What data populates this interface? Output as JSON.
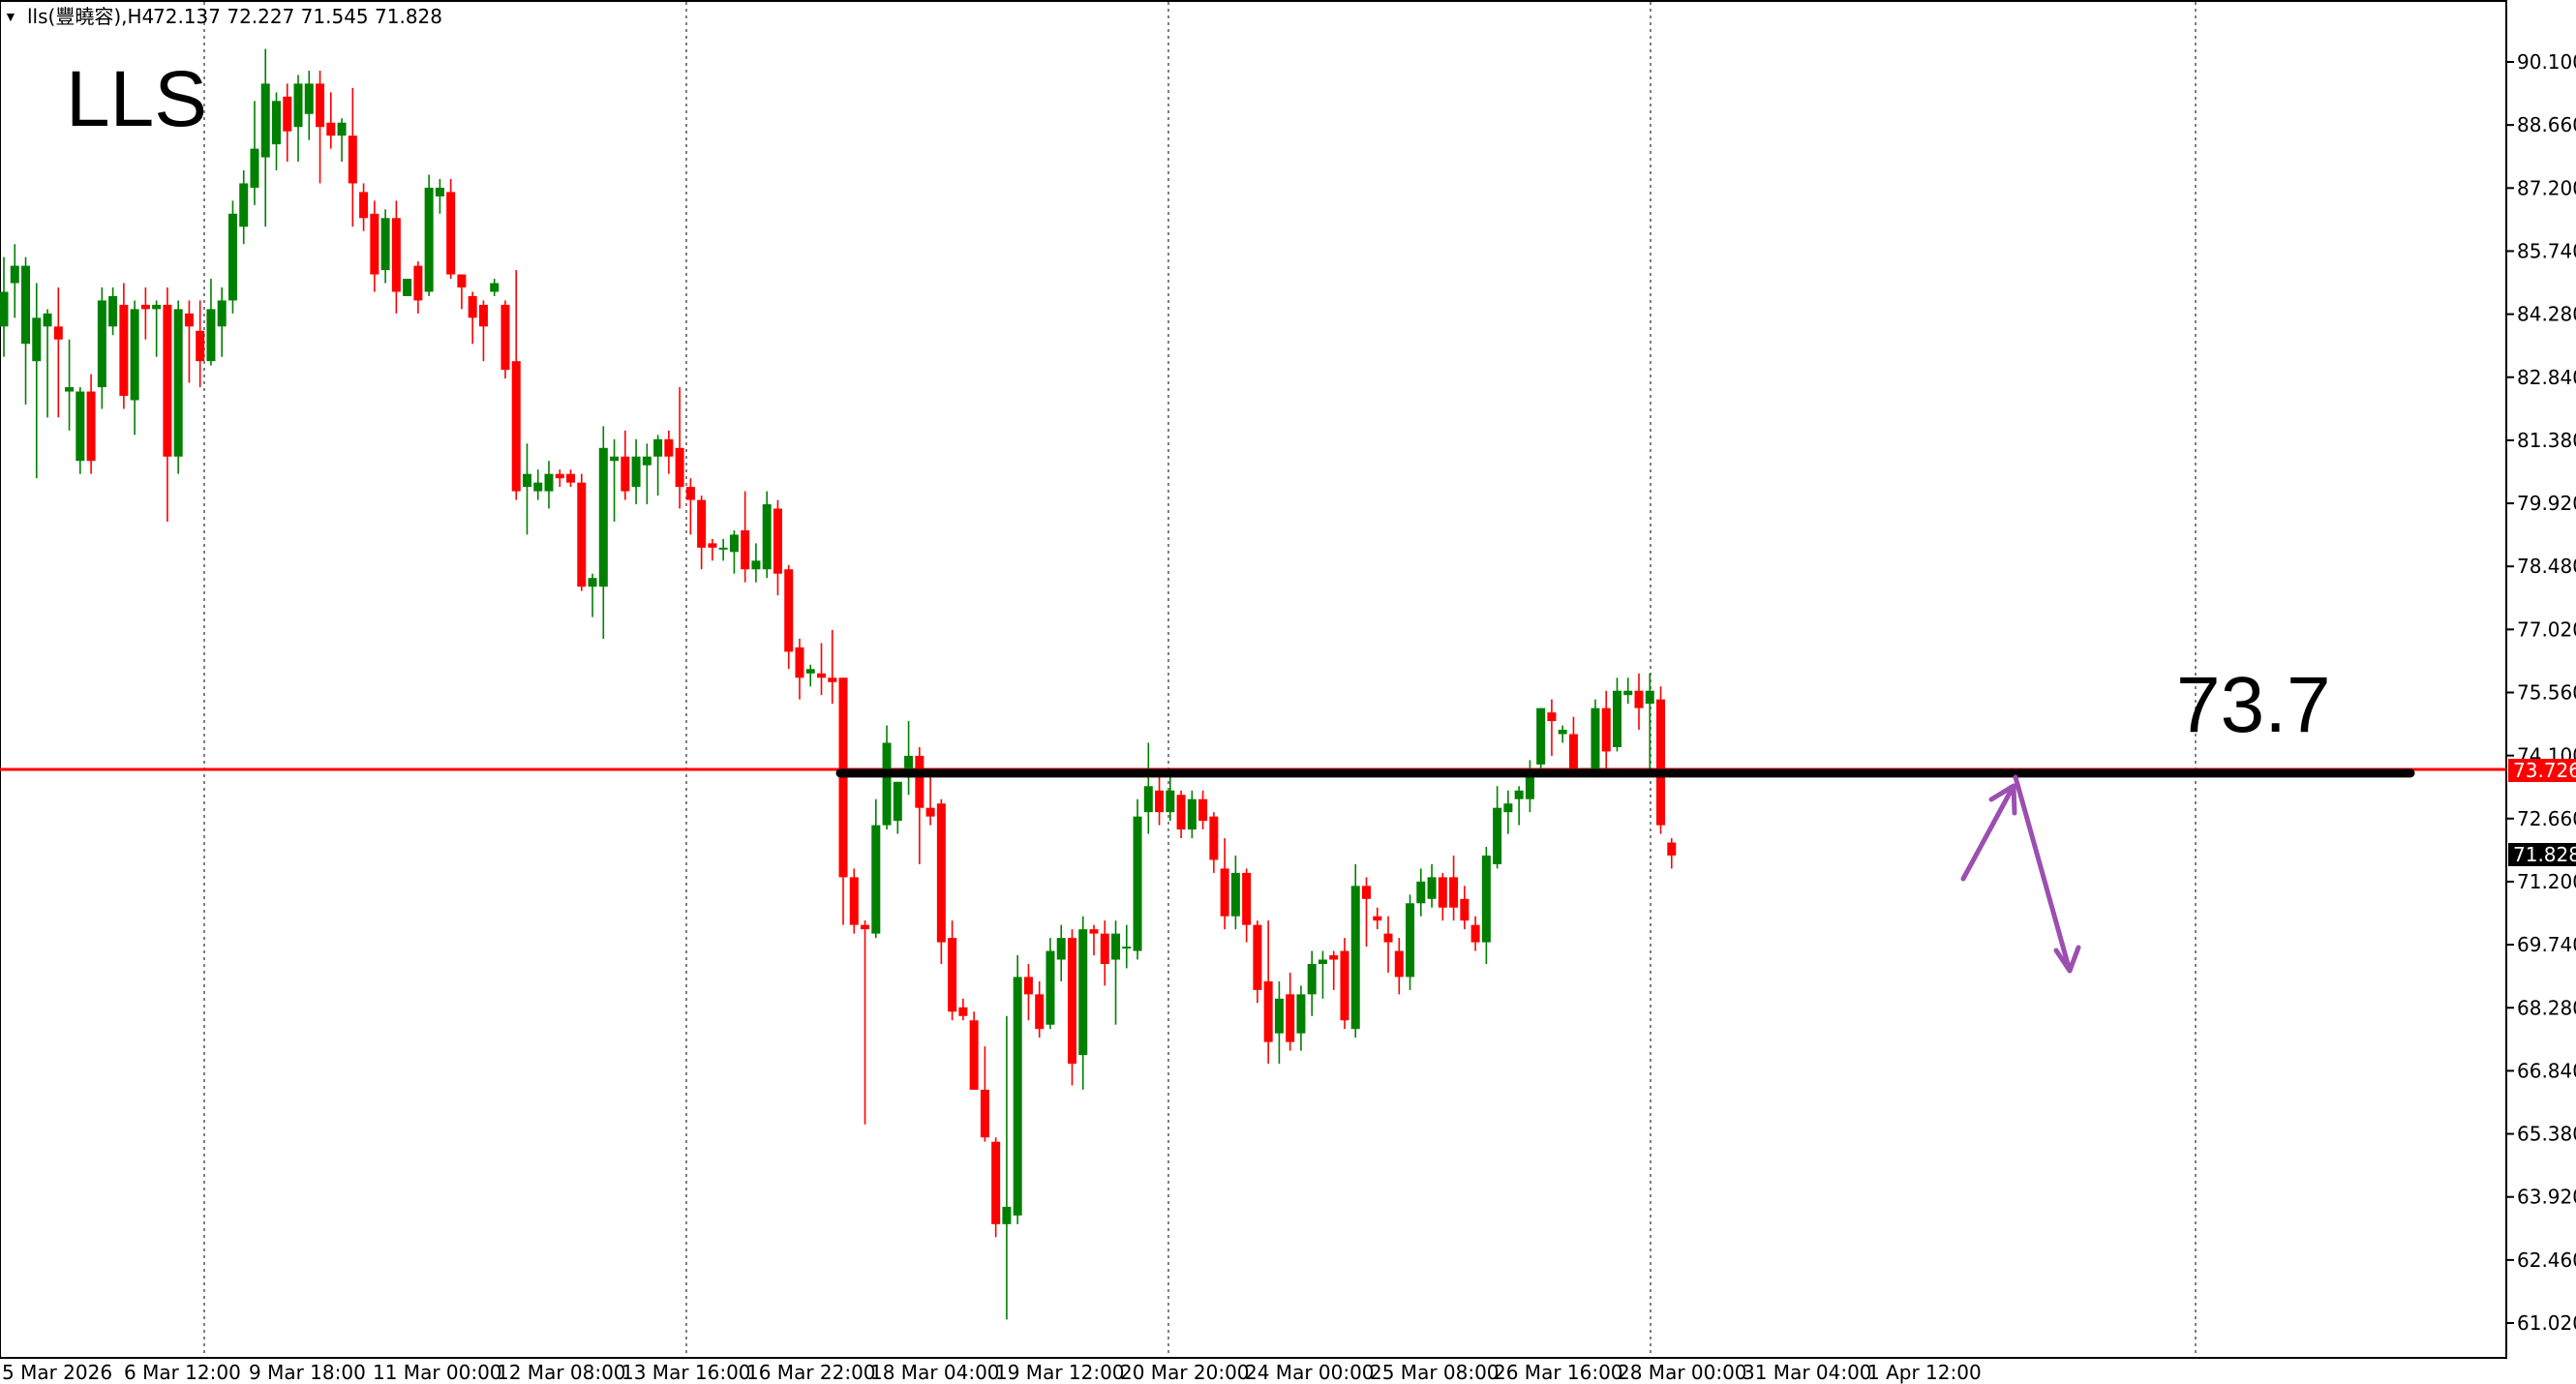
{
  "header": {
    "menu_arrow": "▼",
    "symbol_label": "lls(豐曉容),H4",
    "ohlc_text": "72.137 72.227 71.545 71.828"
  },
  "chart_data": {
    "type": "candlestick",
    "title": "LLS",
    "annotation": "73.7",
    "ylim": [
      60.4,
      91.1
    ],
    "y_ticks": [
      "90.100",
      "88.660",
      "87.200",
      "85.740",
      "84.280",
      "82.840",
      "81.380",
      "79.920",
      "78.480",
      "77.020",
      "75.560",
      "74.100",
      "72.660",
      "71.200",
      "69.740",
      "68.280",
      "66.840",
      "65.380",
      "63.920",
      "62.460",
      "61.020"
    ],
    "x_ticks": [
      "5 Mar 2026",
      "6 Mar 12:00",
      "9 Mar 18:00",
      "11 Mar 00:00",
      "12 Mar 08:00",
      "13 Mar 16:00",
      "16 Mar 22:00",
      "18 Mar 04:00",
      "19 Mar 12:00",
      "20 Mar 20:00",
      "24 Mar 00:00",
      "25 Mar 08:00",
      "26 Mar 16:00",
      "28 Mar 00:00",
      "31 Mar 04:00",
      "1 Apr 12:00"
    ],
    "current_price": "71.828",
    "level_price": "73.726",
    "resistance_level": 73.7,
    "candles": [
      [
        84.0,
        84.8,
        83.3,
        85.6
      ],
      [
        85.0,
        85.4,
        84.2,
        85.9
      ],
      [
        83.6,
        85.4,
        82.2,
        85.6
      ],
      [
        83.2,
        84.2,
        80.5,
        85.0
      ],
      [
        84.0,
        84.3,
        81.9,
        84.4
      ],
      [
        84.0,
        83.7,
        81.9,
        84.9
      ],
      [
        82.5,
        82.6,
        81.6,
        83.7
      ],
      [
        80.9,
        82.5,
        80.6,
        82.6
      ],
      [
        82.5,
        80.9,
        80.6,
        82.9
      ],
      [
        82.6,
        84.6,
        82.1,
        84.9
      ],
      [
        84.0,
        84.7,
        83.8,
        84.9
      ],
      [
        84.5,
        82.4,
        82.1,
        85.0
      ],
      [
        82.3,
        84.4,
        81.5,
        84.6
      ],
      [
        84.5,
        84.4,
        83.7,
        84.9
      ],
      [
        84.4,
        84.5,
        83.3,
        84.6
      ],
      [
        84.5,
        81.0,
        79.5,
        84.9
      ],
      [
        81.0,
        84.4,
        80.6,
        84.6
      ],
      [
        84.3,
        84.0,
        82.7,
        84.6
      ],
      [
        83.9,
        83.2,
        82.6,
        84.6
      ],
      [
        83.2,
        84.4,
        83.1,
        85.1
      ],
      [
        84.0,
        84.6,
        83.3,
        84.9
      ],
      [
        84.6,
        86.6,
        84.3,
        86.9
      ],
      [
        86.3,
        87.3,
        85.9,
        87.6
      ],
      [
        87.2,
        88.1,
        86.8,
        89.2
      ],
      [
        87.9,
        89.6,
        86.3,
        90.4
      ],
      [
        88.2,
        89.2,
        87.6,
        89.4
      ],
      [
        89.3,
        88.5,
        87.8,
        89.6
      ],
      [
        88.6,
        89.6,
        87.8,
        89.8
      ],
      [
        88.9,
        89.6,
        88.3,
        89.9
      ],
      [
        89.6,
        88.6,
        87.3,
        89.9
      ],
      [
        88.7,
        88.4,
        88.1,
        89.4
      ],
      [
        88.4,
        88.7,
        87.8,
        88.8
      ],
      [
        88.4,
        87.3,
        86.3,
        89.5
      ],
      [
        87.1,
        86.5,
        86.2,
        87.3
      ],
      [
        86.6,
        85.2,
        84.8,
        86.9
      ],
      [
        85.3,
        86.5,
        85.0,
        86.7
      ],
      [
        86.5,
        84.8,
        84.3,
        86.9
      ],
      [
        84.7,
        85.1,
        84.7,
        85.1
      ],
      [
        85.4,
        84.6,
        84.3,
        85.5
      ],
      [
        84.8,
        87.2,
        84.7,
        87.5
      ],
      [
        87.0,
        87.2,
        86.6,
        87.4
      ],
      [
        87.1,
        85.2,
        85.1,
        87.4
      ],
      [
        85.2,
        84.9,
        84.4,
        85.2
      ],
      [
        84.7,
        84.2,
        83.6,
        84.8
      ],
      [
        84.5,
        84.0,
        83.2,
        84.6
      ],
      [
        84.8,
        85.0,
        84.7,
        85.1
      ],
      [
        84.5,
        83.0,
        82.8,
        84.6
      ],
      [
        83.2,
        80.2,
        80.0,
        85.3
      ],
      [
        80.3,
        80.6,
        79.2,
        81.3
      ],
      [
        80.2,
        80.4,
        80.0,
        80.7
      ],
      [
        80.2,
        80.6,
        79.8,
        80.9
      ],
      [
        80.6,
        80.5,
        80.3,
        80.7
      ],
      [
        80.6,
        80.4,
        80.3,
        80.7
      ],
      [
        80.4,
        78.0,
        77.9,
        80.6
      ],
      [
        78.0,
        78.2,
        77.3,
        78.3
      ],
      [
        78.0,
        81.2,
        76.8,
        81.7
      ],
      [
        80.9,
        81.0,
        79.5,
        81.4
      ],
      [
        81.0,
        80.2,
        80.0,
        81.6
      ],
      [
        80.3,
        81.0,
        79.9,
        81.4
      ],
      [
        80.8,
        81.0,
        79.9,
        81.3
      ],
      [
        81.0,
        81.4,
        80.1,
        81.5
      ],
      [
        81.4,
        81.0,
        80.6,
        81.6
      ],
      [
        81.2,
        80.3,
        79.8,
        82.6
      ],
      [
        80.3,
        80.0,
        79.2,
        80.5
      ],
      [
        80.0,
        78.9,
        78.4,
        80.1
      ],
      [
        79.0,
        78.9,
        78.6,
        79.1
      ],
      [
        78.9,
        78.9,
        78.6,
        79.1
      ],
      [
        78.8,
        79.2,
        78.3,
        79.3
      ],
      [
        79.3,
        78.4,
        78.1,
        80.2
      ],
      [
        78.4,
        78.6,
        78.1,
        79.0
      ],
      [
        78.4,
        79.9,
        78.2,
        80.2
      ],
      [
        79.8,
        78.3,
        77.8,
        80.0
      ],
      [
        78.4,
        76.5,
        76.1,
        78.5
      ],
      [
        76.6,
        75.9,
        75.4,
        76.8
      ],
      [
        76.0,
        76.1,
        75.7,
        76.2
      ],
      [
        76.0,
        75.9,
        75.5,
        76.7
      ],
      [
        75.9,
        75.8,
        75.3,
        77.0
      ],
      [
        75.9,
        71.3,
        70.2,
        75.9
      ],
      [
        71.3,
        70.2,
        70.0,
        71.5
      ],
      [
        70.2,
        70.1,
        65.6,
        70.3
      ],
      [
        70.0,
        72.5,
        69.9,
        73.1
      ],
      [
        72.5,
        74.4,
        72.4,
        74.8
      ],
      [
        72.6,
        73.5,
        72.3,
        73.5
      ],
      [
        73.6,
        74.1,
        73.2,
        74.9
      ],
      [
        74.1,
        72.9,
        71.6,
        74.3
      ],
      [
        72.9,
        72.7,
        72.5,
        73.8
      ],
      [
        73.0,
        69.8,
        69.3,
        73.1
      ],
      [
        69.9,
        68.2,
        68.0,
        70.3
      ],
      [
        68.3,
        68.1,
        68.0,
        68.5
      ],
      [
        68.0,
        66.4,
        66.4,
        68.2
      ],
      [
        66.4,
        65.3,
        65.2,
        67.4
      ],
      [
        65.2,
        63.3,
        63.0,
        65.3
      ],
      [
        63.3,
        63.7,
        61.1,
        68.1
      ],
      [
        63.5,
        69.0,
        63.3,
        69.5
      ],
      [
        69.0,
        68.6,
        68.0,
        69.3
      ],
      [
        68.6,
        67.8,
        67.6,
        68.9
      ],
      [
        67.9,
        69.6,
        67.8,
        69.9
      ],
      [
        69.4,
        69.9,
        68.9,
        70.2
      ],
      [
        69.9,
        67.0,
        66.5,
        70.1
      ],
      [
        67.2,
        70.1,
        66.4,
        70.4
      ],
      [
        70.1,
        70.0,
        69.5,
        70.2
      ],
      [
        70.0,
        69.3,
        68.8,
        70.3
      ],
      [
        69.4,
        70.0,
        67.9,
        70.3
      ],
      [
        69.7,
        69.7,
        69.2,
        70.2
      ],
      [
        69.6,
        72.7,
        69.4,
        73.1
      ],
      [
        72.8,
        73.4,
        72.3,
        74.4
      ],
      [
        73.3,
        72.8,
        72.5,
        73.6
      ],
      [
        72.8,
        73.3,
        72.6,
        73.7
      ],
      [
        73.2,
        72.4,
        72.2,
        73.3
      ],
      [
        72.4,
        73.1,
        72.2,
        73.3
      ],
      [
        73.1,
        72.6,
        72.4,
        73.3
      ],
      [
        72.7,
        71.7,
        71.4,
        72.8
      ],
      [
        71.5,
        70.4,
        70.1,
        72.2
      ],
      [
        70.4,
        71.4,
        70.1,
        71.8
      ],
      [
        71.4,
        70.2,
        69.8,
        71.5
      ],
      [
        70.2,
        68.7,
        68.4,
        70.3
      ],
      [
        68.9,
        67.5,
        67.0,
        70.3
      ],
      [
        67.7,
        68.5,
        67.0,
        68.9
      ],
      [
        68.6,
        67.5,
        67.3,
        69.1
      ],
      [
        67.7,
        68.6,
        67.3,
        68.8
      ],
      [
        68.6,
        69.3,
        68.1,
        69.6
      ],
      [
        69.3,
        69.4,
        68.5,
        69.6
      ],
      [
        69.5,
        69.4,
        68.7,
        69.6
      ],
      [
        69.6,
        68.0,
        67.8,
        69.9
      ],
      [
        67.8,
        71.1,
        67.6,
        71.6
      ],
      [
        71.1,
        70.8,
        69.7,
        71.3
      ],
      [
        70.4,
        70.3,
        70.1,
        70.6
      ],
      [
        70.0,
        69.8,
        69.1,
        70.4
      ],
      [
        69.6,
        69.0,
        68.6,
        69.9
      ],
      [
        69.0,
        70.7,
        68.7,
        70.9
      ],
      [
        70.7,
        71.2,
        70.4,
        71.5
      ],
      [
        70.8,
        71.3,
        70.6,
        71.6
      ],
      [
        71.3,
        70.6,
        70.3,
        71.4
      ],
      [
        71.3,
        70.6,
        70.3,
        71.8
      ],
      [
        70.8,
        70.3,
        70.1,
        71.1
      ],
      [
        70.2,
        69.8,
        69.6,
        70.4
      ],
      [
        69.8,
        71.8,
        69.3,
        72.0
      ],
      [
        71.6,
        72.9,
        71.5,
        73.4
      ],
      [
        72.8,
        73.0,
        72.3,
        73.3
      ],
      [
        73.1,
        73.3,
        72.5,
        73.4
      ],
      [
        73.1,
        73.7,
        72.8,
        74.0
      ],
      [
        73.9,
        75.2,
        73.7,
        75.2
      ],
      [
        75.1,
        74.9,
        74.1,
        75.4
      ],
      [
        74.6,
        74.7,
        74.4,
        74.8
      ],
      [
        74.6,
        73.8,
        73.7,
        75.0
      ],
      [
        73.8,
        73.8,
        73.7,
        73.8
      ],
      [
        73.8,
        75.2,
        73.6,
        75.4
      ],
      [
        75.2,
        74.2,
        73.7,
        75.6
      ],
      [
        74.3,
        75.6,
        74.2,
        75.9
      ],
      [
        75.5,
        75.6,
        75.3,
        75.9
      ],
      [
        75.6,
        75.2,
        74.7,
        76.0
      ],
      [
        75.3,
        75.6,
        73.7,
        76.0
      ],
      [
        75.4,
        72.5,
        72.3,
        75.7
      ],
      [
        72.1,
        71.8,
        71.5,
        72.2
      ]
    ]
  }
}
